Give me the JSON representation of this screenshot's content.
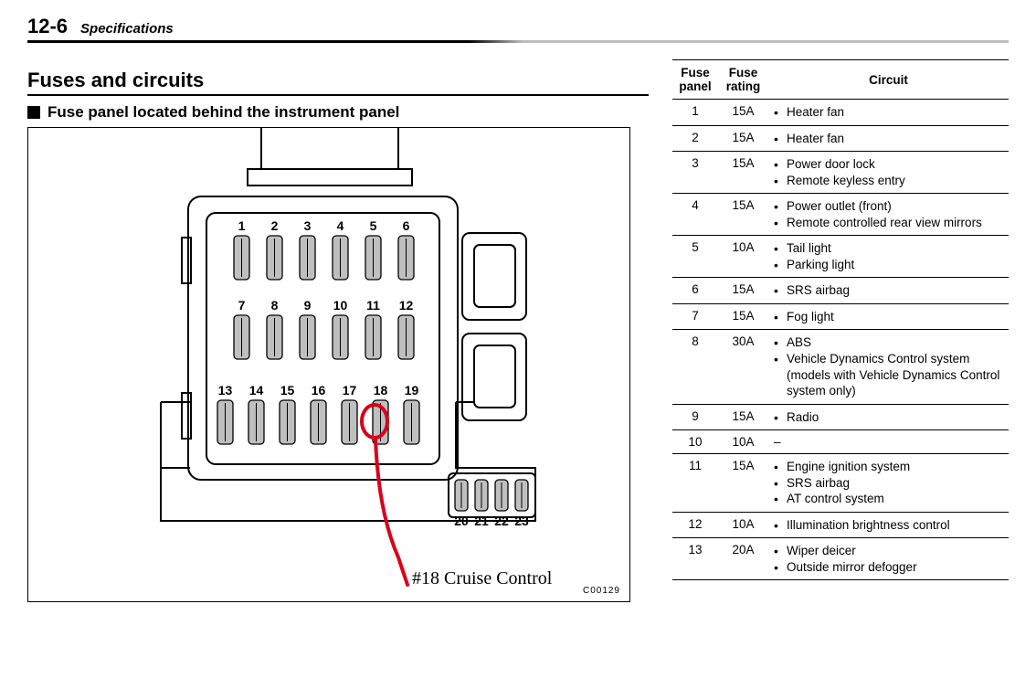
{
  "header": {
    "page": "12-6",
    "section": "Specifications"
  },
  "headings": {
    "main": "Fuses and circuits",
    "sub": "Fuse panel located behind the instrument panel"
  },
  "annotation": {
    "text": "#18 Cruise Control",
    "stroke_color": "#d9001b"
  },
  "diagram": {
    "img_code": "C00129",
    "row1": [
      "1",
      "2",
      "3",
      "4",
      "5",
      "6"
    ],
    "row2": [
      "7",
      "8",
      "9",
      "10",
      "11",
      "12"
    ],
    "row3": [
      "13",
      "14",
      "15",
      "16",
      "17",
      "18",
      "19"
    ],
    "aux": [
      "20",
      "21",
      "22",
      "23"
    ],
    "fuse_fill": "#bfbfbf"
  },
  "table": {
    "head": {
      "panel": "Fuse panel",
      "rating": "Fuse rating",
      "circuit": "Circuit"
    },
    "rows": [
      {
        "panel": "1",
        "rating": "15A",
        "items": [
          "Heater fan"
        ]
      },
      {
        "panel": "2",
        "rating": "15A",
        "items": [
          "Heater fan"
        ]
      },
      {
        "panel": "3",
        "rating": "15A",
        "items": [
          "Power door lock",
          "Remote keyless entry"
        ]
      },
      {
        "panel": "4",
        "rating": "15A",
        "items": [
          "Power outlet (front)",
          "Remote controlled rear view mirrors"
        ]
      },
      {
        "panel": "5",
        "rating": "10A",
        "items": [
          "Tail light",
          "Parking light"
        ]
      },
      {
        "panel": "6",
        "rating": "15A",
        "items": [
          "SRS airbag"
        ]
      },
      {
        "panel": "7",
        "rating": "15A",
        "items": [
          "Fog light"
        ]
      },
      {
        "panel": "8",
        "rating": "30A",
        "items": [
          "ABS",
          "Vehicle Dynamics Control system (models with Vehicle Dynamics Control system only)"
        ]
      },
      {
        "panel": "9",
        "rating": "15A",
        "items": [
          "Radio"
        ]
      },
      {
        "panel": "10",
        "rating": "10A",
        "dash": "–"
      },
      {
        "panel": "11",
        "rating": "15A",
        "items": [
          "Engine ignition system",
          "SRS airbag",
          "AT control system"
        ]
      },
      {
        "panel": "12",
        "rating": "10A",
        "items": [
          "Illumination brightness control"
        ]
      },
      {
        "panel": "13",
        "rating": "20A",
        "items": [
          "Wiper deicer",
          "Outside mirror defogger"
        ]
      }
    ]
  }
}
